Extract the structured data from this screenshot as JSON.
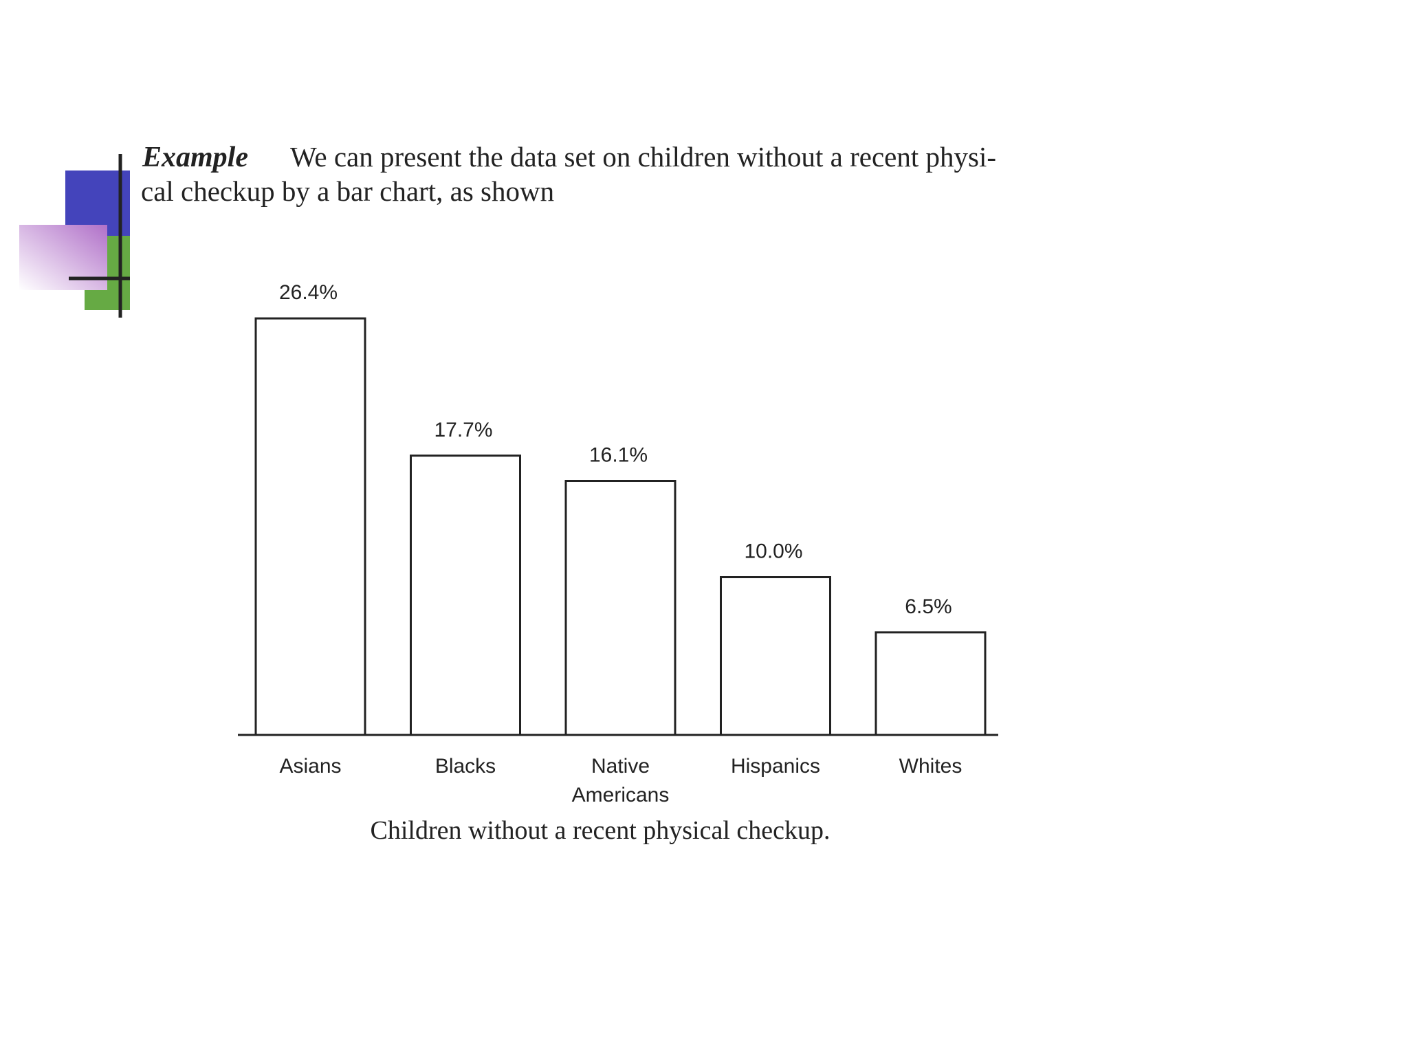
{
  "chart_data": {
    "type": "bar",
    "intro_label": "Example",
    "intro_lines": [
      "We can present the data set on children without a recent physi-",
      "cal checkup by a bar chart, as shown"
    ],
    "caption": "Children without a recent physical checkup.",
    "categories": [
      "Asians",
      "Blacks",
      "Native Americans",
      "Hispanics",
      "Whites"
    ],
    "values": [
      26.4,
      17.7,
      16.1,
      10.0,
      6.5
    ],
    "value_labels": [
      "26.4%",
      "17.7%",
      "16.1%",
      "10.0%",
      "6.5%"
    ],
    "color": "#ffffff"
  }
}
